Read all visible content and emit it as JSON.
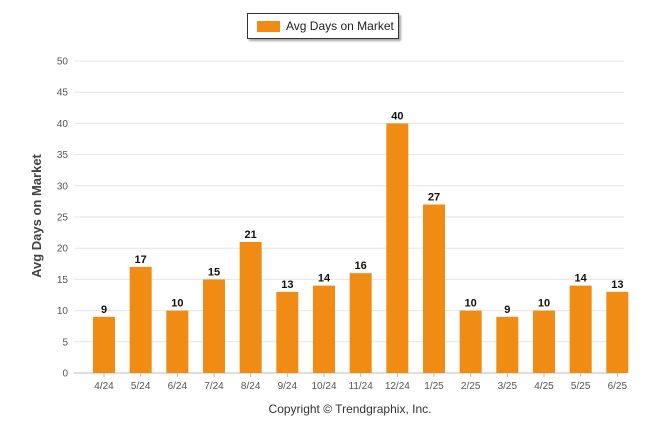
{
  "legend": {
    "label": "Avg Days on Market",
    "color": "#F08B14"
  },
  "footer": {
    "copyright": "Copyright © Trendgraphix, Inc."
  },
  "chart_data": {
    "type": "bar",
    "title": "",
    "xlabel": "",
    "ylabel": "Avg Days on Market",
    "ylim": [
      0,
      50
    ],
    "yticks": [
      0,
      5,
      10,
      15,
      20,
      25,
      30,
      35,
      40,
      45,
      50
    ],
    "grid": true,
    "legend_position": "top-center",
    "categories": [
      "4/24",
      "5/24",
      "6/24",
      "7/24",
      "8/24",
      "9/24",
      "10/24",
      "11/24",
      "12/24",
      "1/25",
      "2/25",
      "3/25",
      "4/25",
      "5/25",
      "6/25"
    ],
    "series": [
      {
        "name": "Avg Days on Market",
        "color": "#F08B14",
        "values": [
          9,
          17,
          10,
          15,
          21,
          13,
          14,
          16,
          40,
          27,
          10,
          9,
          10,
          14,
          13
        ]
      }
    ]
  }
}
